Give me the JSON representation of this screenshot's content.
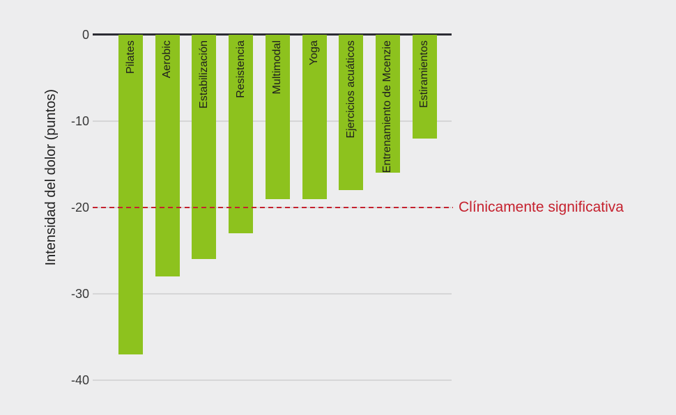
{
  "chart_data": {
    "type": "bar",
    "orientation": "vertical-negative",
    "title": "",
    "ylabel": "Intensidad del dolor (puntos)",
    "xlabel": "",
    "categories": [
      "Pilates",
      "Aerobic",
      "Estabilización",
      "Resistencia",
      "Multimodal",
      "Yoga",
      "Ejercicios acuáticos",
      "Entrenamiento de Mcenzie",
      "Estiramientos"
    ],
    "values": [
      -37,
      -28,
      -26,
      -23,
      -19,
      -19,
      -18,
      -16,
      -12
    ],
    "ylim": [
      -40,
      0
    ],
    "yticks": [
      {
        "label": "0",
        "value": 0
      },
      {
        "label": "-10",
        "value": -10
      },
      {
        "label": "-20",
        "value": -20
      },
      {
        "label": "-30",
        "value": -30
      },
      {
        "label": "-40",
        "value": -40
      }
    ],
    "grid": true,
    "legend": "none",
    "annotation": {
      "label": "Clínicamente significativa",
      "value": -20,
      "style": "dashed"
    },
    "colors": {
      "background": "#ededee",
      "bar": "#8dc21e",
      "annotation_red": "#c5212e",
      "axis_line": "#2b2b33",
      "gridline": "#d6d6d7",
      "label_text": "#1e1e1e"
    }
  }
}
